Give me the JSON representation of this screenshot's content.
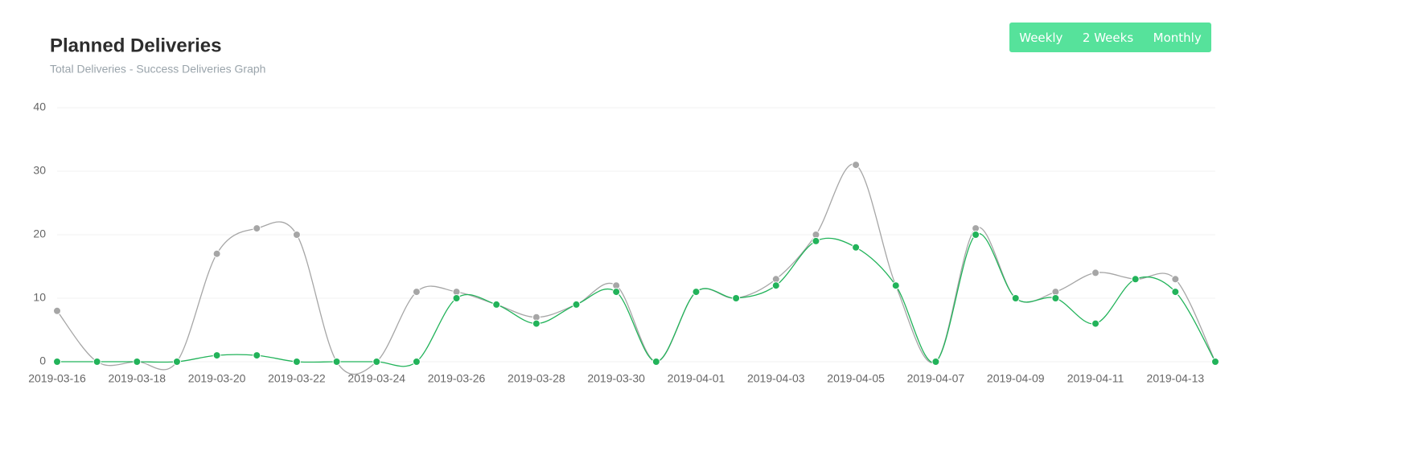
{
  "chart_data": {
    "type": "line",
    "title": "Planned Deliveries",
    "subtitle": "Total Deliveries - Success Deliveries Graph",
    "categories": [
      "2019-03-16",
      null,
      "2019-03-18",
      null,
      "2019-03-20",
      null,
      "2019-03-22",
      null,
      "2019-03-24",
      null,
      "2019-03-26",
      null,
      "2019-03-28",
      null,
      "2019-03-30",
      null,
      "2019-04-01",
      null,
      "2019-04-03",
      null,
      "2019-04-05",
      null,
      "2019-04-07",
      null,
      "2019-04-09",
      null,
      "2019-04-11",
      null,
      "2019-04-13",
      null
    ],
    "series": [
      {
        "color": "#a6a6a6",
        "values": [
          8,
          0,
          0,
          0,
          17,
          21,
          20,
          0,
          0,
          11,
          11,
          9,
          7,
          9,
          12,
          0,
          11,
          10,
          13,
          20,
          31,
          12,
          0,
          21,
          10,
          11,
          14,
          13,
          13,
          0
        ]
      },
      {
        "color": "#22b35a",
        "values": [
          0,
          0,
          0,
          0,
          1,
          1,
          0,
          0,
          0,
          0,
          10,
          9,
          6,
          9,
          11,
          0,
          11,
          10,
          12,
          19,
          18,
          12,
          0,
          20,
          10,
          10,
          6,
          13,
          11,
          0
        ]
      }
    ],
    "ylim": [
      0,
      40
    ],
    "yticks": [
      0,
      10,
      20,
      30,
      40
    ],
    "grid": true,
    "buttons": [
      "Weekly",
      "2 Weeks",
      "Monthly"
    ]
  }
}
